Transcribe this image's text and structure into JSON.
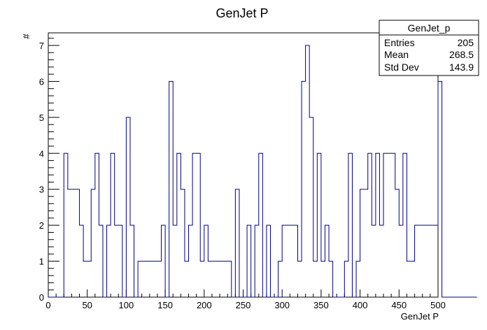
{
  "chart_data": {
    "type": "histogram",
    "title": "GenJet P",
    "xlabel": "GenJet P",
    "ylabel": "#",
    "xlim": [
      0,
      500
    ],
    "ylim": [
      0,
      7.35
    ],
    "x_ticks": [
      0,
      50,
      100,
      150,
      200,
      250,
      300,
      350,
      400,
      450,
      500
    ],
    "y_ticks": [
      0,
      1,
      2,
      3,
      4,
      5,
      6,
      7
    ],
    "bin_width": 5,
    "bin_start": 0,
    "values": [
      0,
      0,
      0,
      0,
      4,
      3,
      3,
      3,
      2,
      1,
      1,
      3,
      4,
      2,
      0,
      2,
      4,
      2,
      2,
      0,
      5,
      2,
      0,
      1,
      1,
      1,
      1,
      1,
      1,
      2,
      0,
      6,
      2,
      4,
      3,
      1,
      2,
      4,
      4,
      1,
      2,
      1,
      1,
      1,
      1,
      1,
      1,
      0,
      3,
      0,
      0,
      2,
      0,
      2,
      4,
      0,
      2,
      0,
      0,
      1,
      2,
      2,
      2,
      2,
      1,
      6,
      7,
      5,
      1,
      4,
      1,
      2,
      1,
      0,
      0,
      0,
      1,
      4,
      0,
      1,
      3,
      3,
      4,
      2,
      4,
      2,
      4,
      4,
      4,
      3,
      2,
      4,
      1,
      1,
      2,
      2,
      2,
      2,
      2,
      2,
      6,
      0,
      0,
      0,
      0,
      0,
      0,
      0,
      0,
      0
    ],
    "line_color": "#000080",
    "grid": false,
    "stats_box": {
      "title": "GenJet_p",
      "rows": [
        {
          "label": "Entries",
          "value": "205"
        },
        {
          "label": "Mean",
          "value": "268.5"
        },
        {
          "label": "Std Dev",
          "value": "143.9"
        }
      ],
      "placement": "top-right"
    }
  }
}
